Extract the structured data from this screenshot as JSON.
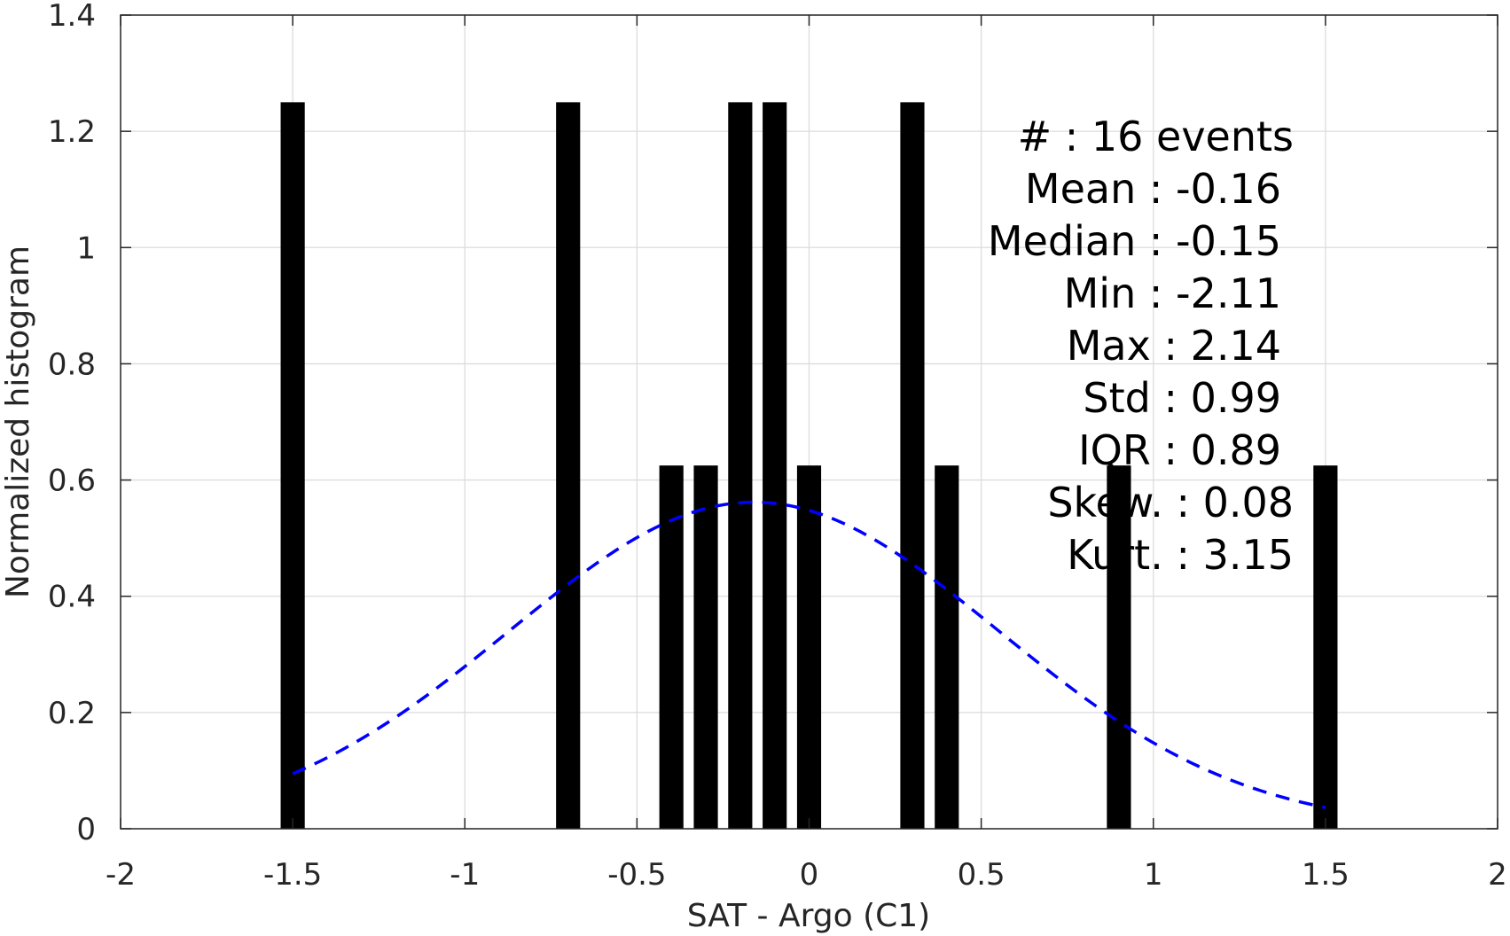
{
  "chart_data": {
    "type": "bar",
    "xlabel": "SAT - Argo (C1)",
    "ylabel": "Normalized histogram",
    "xlim": [
      -2,
      2
    ],
    "ylim": [
      0,
      1.4
    ],
    "x_ticks": [
      -2,
      -1.5,
      -1,
      -0.5,
      0,
      0.5,
      1,
      1.5,
      2
    ],
    "x_tick_labels": [
      "-2",
      "-1.5",
      "-1",
      "-0.5",
      "0",
      "0.5",
      "1",
      "1.5",
      "2"
    ],
    "y_ticks": [
      0,
      0.2,
      0.4,
      0.6,
      0.8,
      1,
      1.2,
      1.4
    ],
    "y_tick_labels": [
      "0",
      "0.2",
      "0.4",
      "0.6",
      "0.8",
      "1",
      "1.2",
      "1.4"
    ],
    "grid": true,
    "bar_width": 0.07,
    "bars": [
      {
        "x": -1.5,
        "value": 1.25
      },
      {
        "x": -0.7,
        "value": 1.25
      },
      {
        "x": -0.4,
        "value": 0.625
      },
      {
        "x": -0.3,
        "value": 0.625
      },
      {
        "x": -0.2,
        "value": 1.25
      },
      {
        "x": -0.1,
        "value": 1.25
      },
      {
        "x": 0.0,
        "value": 0.625
      },
      {
        "x": 0.3,
        "value": 1.25
      },
      {
        "x": 0.4,
        "value": 0.625
      },
      {
        "x": 0.9,
        "value": 0.625
      },
      {
        "x": 1.5,
        "value": 0.625
      }
    ],
    "bar_color": "#000000",
    "fit_curve": {
      "type": "normal",
      "mean": -0.16,
      "std": 0.71,
      "x_range": [
        -1.5,
        1.5
      ],
      "style": "dashed",
      "color": "#0000ff"
    },
    "stats_lines": [
      "#  : 16 events",
      "Mean : -0.16",
      "Median : -0.15",
      "Min : -2.11",
      "Max : 2.14",
      "Std : 0.99",
      "IQR : 0.89",
      "Skew. : 0.08",
      "Kurt. : 3.15"
    ]
  }
}
